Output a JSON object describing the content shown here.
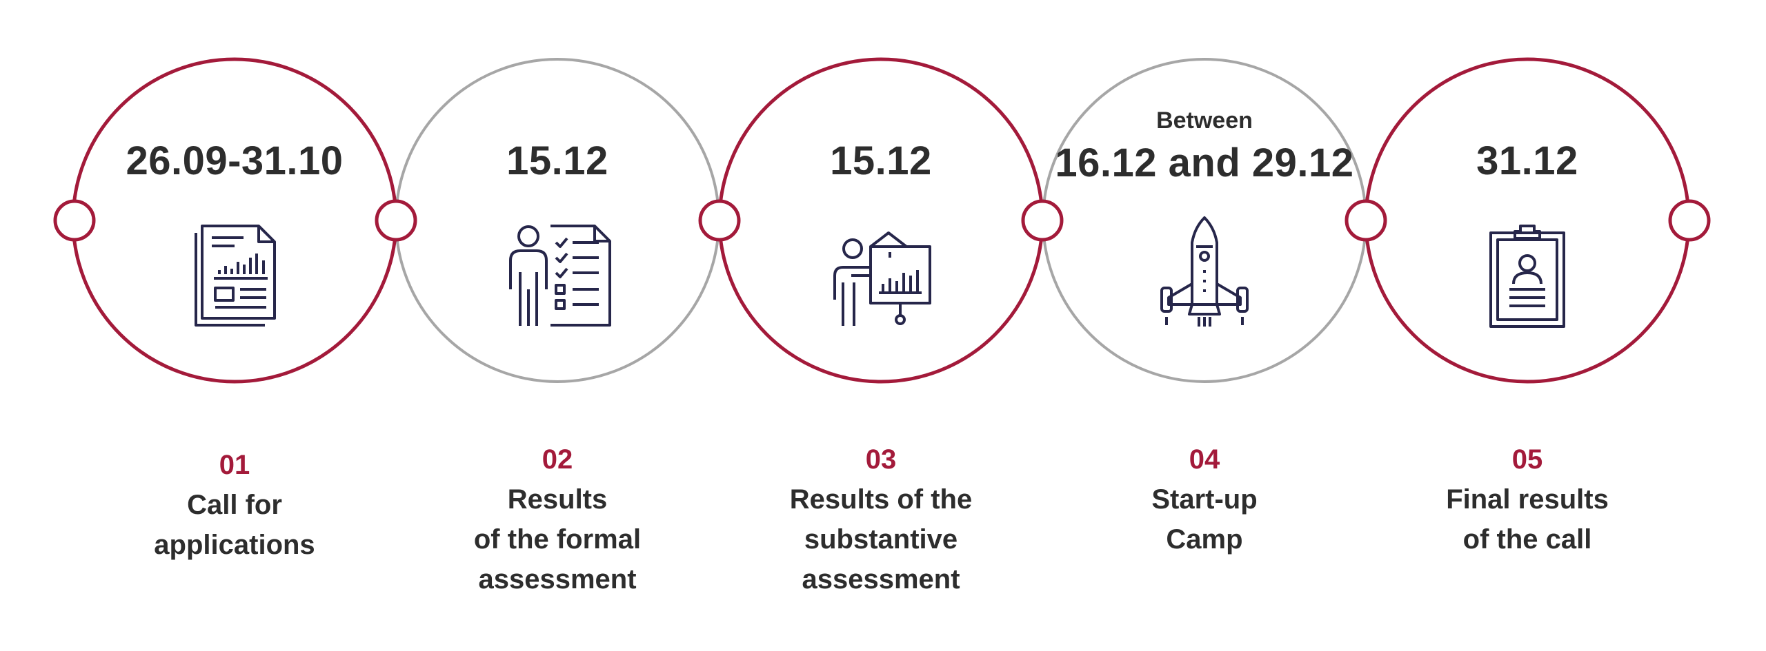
{
  "colors": {
    "accent": "#a31a3a",
    "grey": "#a6a6a6",
    "text": "#2d2d2d",
    "icon": "#26264a"
  },
  "stages": [
    {
      "date_prefix": "",
      "date": "26.09-31.10",
      "number": "01",
      "label": "Call for\napplications",
      "icon": "document-chart-icon",
      "ring": "accent"
    },
    {
      "date_prefix": "",
      "date": "15.12",
      "number": "02",
      "label": "Results\nof the formal\nassessment",
      "icon": "person-checklist-icon",
      "ring": "grey"
    },
    {
      "date_prefix": "",
      "date": "15.12",
      "number": "03",
      "label": "Results of the\nsubstantive\nassessment",
      "icon": "presentation-board-icon",
      "ring": "accent"
    },
    {
      "date_prefix": "Between",
      "date": "16.12 and 29.12",
      "number": "04",
      "label": "Start-up\nCamp",
      "icon": "rocket-icon",
      "ring": "grey"
    },
    {
      "date_prefix": "",
      "date": "31.12",
      "number": "05",
      "label": "Final results\nof the call",
      "icon": "clipboard-profile-icon",
      "ring": "accent"
    }
  ]
}
